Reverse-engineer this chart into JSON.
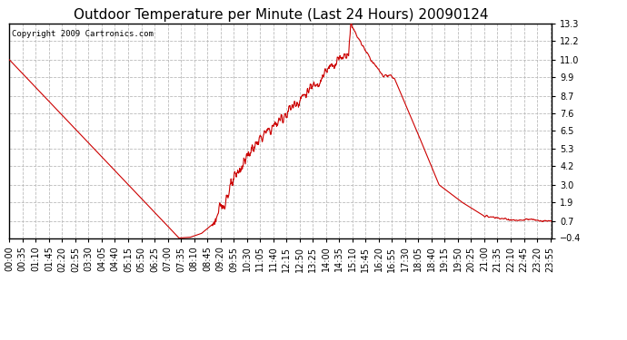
{
  "title": "Outdoor Temperature per Minute (Last 24 Hours) 20090124",
  "copyright": "Copyright 2009 Cartronics.com",
  "line_color": "#cc0000",
  "background_color": "#ffffff",
  "plot_bg_color": "#ffffff",
  "grid_color": "#bbbbbb",
  "yticks": [
    -0.4,
    0.7,
    1.9,
    3.0,
    4.2,
    5.3,
    6.5,
    7.6,
    8.7,
    9.9,
    11.0,
    12.2,
    13.3
  ],
  "ylim": [
    -0.4,
    13.3
  ],
  "title_fontsize": 11,
  "tick_fontsize": 7,
  "copyright_fontsize": 6.5,
  "keypoints": [
    [
      0,
      11.0
    ],
    [
      450,
      -0.4
    ],
    [
      480,
      -0.35
    ],
    [
      510,
      -0.1
    ],
    [
      540,
      0.5
    ],
    [
      570,
      1.9
    ],
    [
      600,
      3.5
    ],
    [
      630,
      4.8
    ],
    [
      660,
      5.8
    ],
    [
      690,
      6.5
    ],
    [
      720,
      7.2
    ],
    [
      750,
      8.0
    ],
    [
      780,
      8.7
    ],
    [
      810,
      9.4
    ],
    [
      840,
      10.2
    ],
    [
      870,
      11.0
    ],
    [
      900,
      11.5
    ],
    [
      906,
      13.3
    ],
    [
      930,
      12.2
    ],
    [
      960,
      11.0
    ],
    [
      990,
      10.0
    ],
    [
      1020,
      9.9
    ],
    [
      1080,
      6.5
    ],
    [
      1140,
      3.0
    ],
    [
      1200,
      1.9
    ],
    [
      1260,
      1.0
    ],
    [
      1350,
      0.7
    ],
    [
      1380,
      0.8
    ],
    [
      1410,
      0.7
    ],
    [
      1439,
      0.7
    ]
  ]
}
